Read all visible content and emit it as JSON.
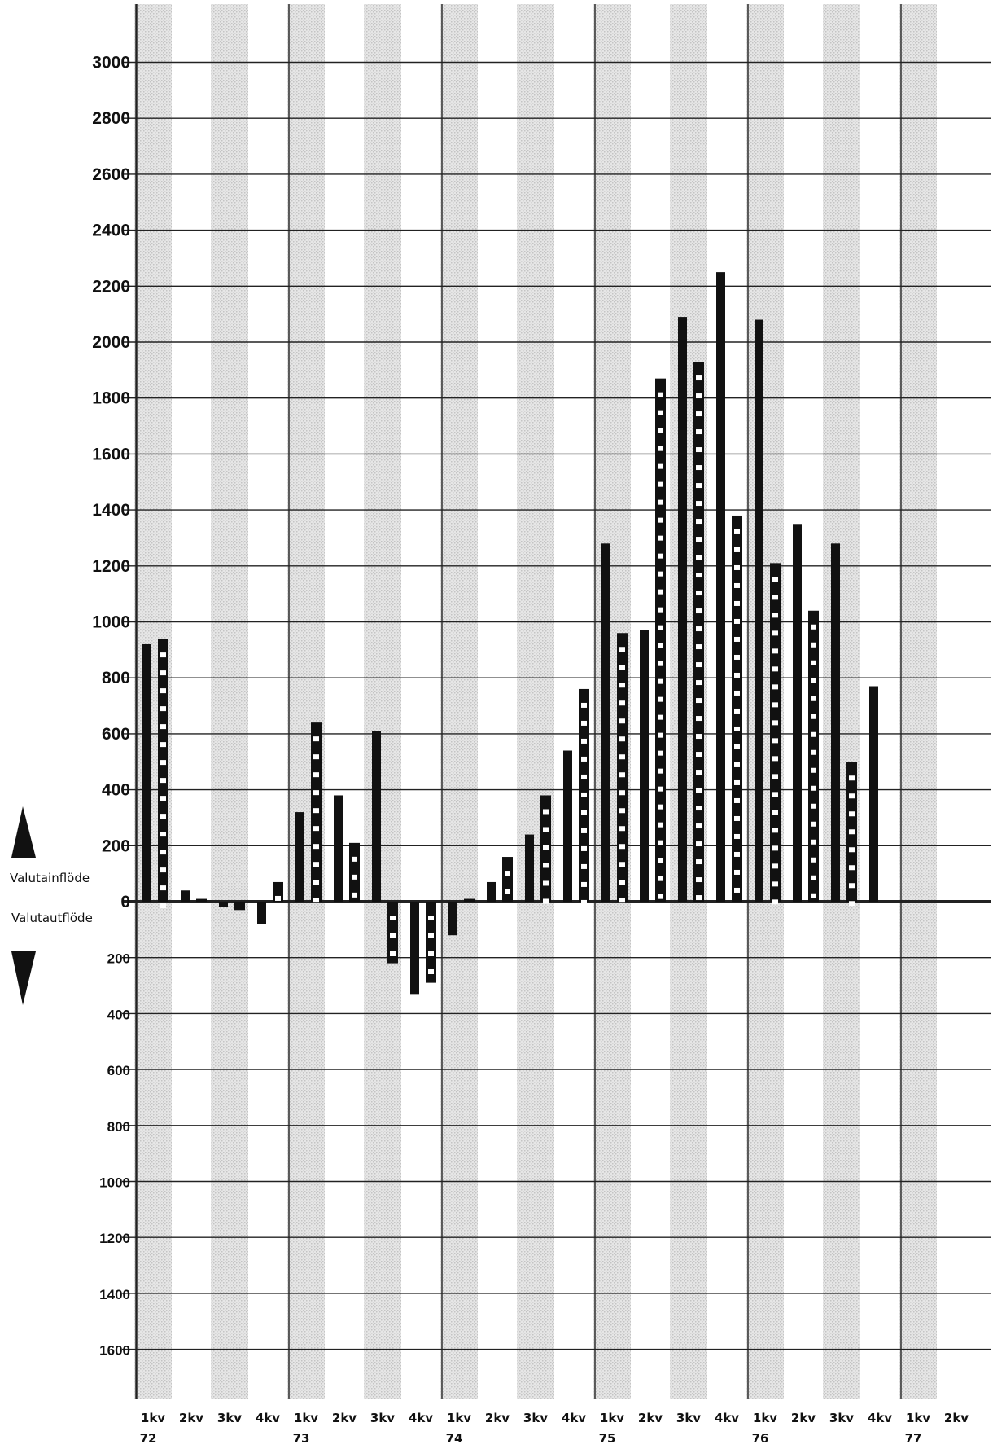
{
  "chart_data": {
    "type": "bar",
    "title": "",
    "xlabel": "",
    "ylabel": "",
    "ylim": [
      -1800,
      3200
    ],
    "y_ticks": [
      3000,
      2800,
      2600,
      2400,
      2200,
      2000,
      1800,
      1600,
      1400,
      1200,
      1000,
      800,
      600,
      400,
      200,
      0,
      -200,
      -400,
      -600,
      -800,
      -1000,
      -1200,
      -1400,
      -1600
    ],
    "y_tick_labels": [
      "3000",
      "2800",
      "2600",
      "2400",
      "2200",
      "2000",
      "1800",
      "1600",
      "1400",
      "1200",
      "1000",
      "800",
      "600",
      "400",
      "200",
      "0",
      "200",
      "400",
      "600",
      "800",
      "1000",
      "1200",
      "1400",
      "1600"
    ],
    "categories": [
      "1kv",
      "2kv",
      "3kv",
      "4kv",
      "1kv",
      "2kv",
      "3kv",
      "4kv",
      "1kv",
      "2kv",
      "3kv",
      "4kv",
      "1kv",
      "2kv",
      "3kv",
      "4kv",
      "1kv",
      "2kv",
      "3kv",
      "4kv",
      "1kv",
      "2kv"
    ],
    "year_labels": [
      {
        "index": 0,
        "label": "72"
      },
      {
        "index": 4,
        "label": "73"
      },
      {
        "index": 8,
        "label": "74"
      },
      {
        "index": 12,
        "label": "75"
      },
      {
        "index": 16,
        "label": "76"
      },
      {
        "index": 20,
        "label": "77"
      }
    ],
    "series": [
      {
        "style": "solid",
        "color": "#111111",
        "values": [
          920,
          40,
          -20,
          -80,
          320,
          380,
          610,
          -330,
          -120,
          70,
          240,
          540,
          1280,
          970,
          2090,
          2250,
          2080,
          1350,
          1280,
          770,
          null,
          null
        ]
      },
      {
        "style": "dashed",
        "color": "#111111",
        "values": [
          940,
          10,
          -30,
          70,
          640,
          210,
          -220,
          -290,
          10,
          160,
          380,
          760,
          960,
          1870,
          1930,
          1380,
          1210,
          1040,
          500,
          null,
          null,
          null
        ]
      }
    ],
    "grid": true,
    "shaded_column_bands": true,
    "legend": "none",
    "annotations": {
      "inflow_label": "Valutainflöde",
      "outflow_label": "Valutautflöde",
      "up_arrow": "up-triangle",
      "down_arrow": "down-triangle"
    }
  }
}
